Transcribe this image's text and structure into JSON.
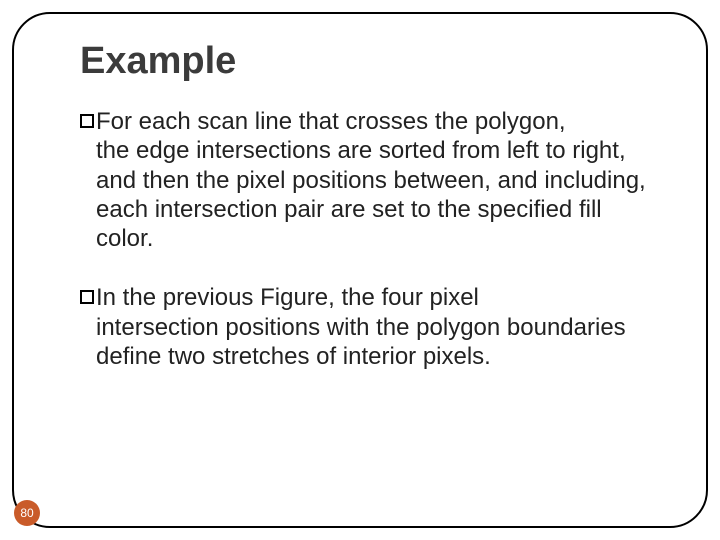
{
  "title": "Example",
  "bullets": [
    {
      "first": "For each scan line that crosses the polygon,",
      "rest": "the edge intersections are sorted from left to right, and then the pixel positions between, and including, each intersection pair are set to the specified fill color."
    },
    {
      "first": "In the previous Figure, the four pixel",
      "rest": "intersection positions with the polygon boundaries define two stretches of interior pixels."
    }
  ],
  "page_number": "80",
  "colors": {
    "title": "#3b3b3b",
    "text": "#222222",
    "badge_bg": "#c95b29",
    "badge_text": "#ffffff",
    "frame": "#000000"
  }
}
